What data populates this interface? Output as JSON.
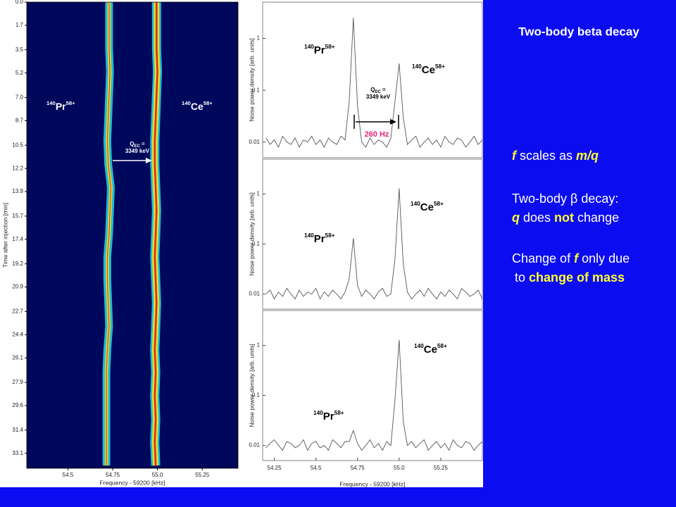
{
  "slide": {
    "title": "Two-body beta decay",
    "lines": [
      [
        {
          "text": "f",
          "style": "yi"
        },
        {
          "text": " scales as ",
          "style": "w"
        },
        {
          "text": "m/q",
          "style": "yi"
        }
      ],
      [
        {
          "text": "Two-body β decay:",
          "style": "w"
        }
      ],
      [
        {
          "text": "q",
          "style": "yi"
        },
        {
          "text": " does ",
          "style": "w"
        },
        {
          "text": "not",
          "style": "yb"
        },
        {
          "text": " change",
          "style": "w"
        }
      ],
      [
        {
          "text": "Change of ",
          "style": "w"
        },
        {
          "text": "f",
          "style": "yi"
        },
        {
          "text": " only due",
          "style": "w"
        }
      ],
      [
        {
          "text": "to ",
          "style": "w"
        },
        {
          "text": "change of mass",
          "style": "yb"
        }
      ]
    ]
  },
  "chart_data": [
    {
      "type": "trace",
      "ylabel": "Time after injection [min]",
      "xlabel": "Frequency - 59200 [kHz]",
      "xlim": [
        54.27,
        55.45
      ],
      "xticks": [
        54.5,
        54.75,
        {
          "value": 55,
          "label": "55.0"
        },
        55.25
      ],
      "ylim": [
        0,
        34.2
      ],
      "yticks": [
        {
          "value": 0,
          "label": "0.0"
        },
        1.7,
        3.5,
        5.2,
        {
          "value": 7,
          "label": "7.0"
        },
        8.7,
        10.5,
        12.2,
        13.9,
        15.7,
        17.4,
        19.2,
        20.9,
        22.7,
        24.4,
        26.1,
        27.9,
        29.6,
        31.4,
        33.1
      ],
      "y": [
        0,
        1.7,
        3.4,
        5.1,
        6.8,
        8.5,
        10.2,
        11.9,
        13.6,
        15.3,
        17,
        18.7,
        20.4,
        22.1,
        23.8,
        25.5,
        27.2,
        28.9,
        30.6,
        32.3,
        34
      ],
      "series": [
        {
          "values": [
            54.73,
            54.73,
            54.73,
            54.735,
            54.73,
            54.725,
            54.72,
            54.725,
            54.74,
            54.735,
            54.73,
            54.72,
            54.72,
            54.725,
            54.73,
            54.72,
            54.715,
            54.715,
            54.715,
            54.715,
            54.715
          ]
        },
        {
          "values": [
            54.995,
            54.995,
            54.995,
            55.0,
            54.995,
            54.99,
            54.985,
            54.985,
            54.99,
            54.995,
            54.99,
            54.985,
            54.99,
            54.995,
            54.99,
            54.985,
            54.99,
            54.985,
            54.99,
            54.985,
            54.99
          ]
        }
      ],
      "annotations": {
        "ions": [
          {
            "mass": "140",
            "element": "Pr",
            "charge": "58+"
          },
          {
            "mass": "140",
            "element": "Ce",
            "charge": "58+"
          }
        ],
        "q": {
          "symbol": "Q",
          "subscript": "EC",
          "suffix": " =",
          "value": "3349 keV"
        }
      }
    },
    {
      "type": "line",
      "ylabel": "Noise power density [arb. units]",
      "log_y": true,
      "xlim": [
        54.18,
        55.5
      ],
      "ylim": [
        0.005,
        5
      ],
      "yticks": [
        0.01,
        0.1,
        1
      ],
      "x": [
        54.2,
        54.225,
        54.25,
        54.275,
        54.3,
        54.325,
        54.35,
        54.375,
        54.4,
        54.425,
        54.45,
        54.475,
        54.5,
        54.525,
        54.55,
        54.575,
        54.6,
        54.625,
        54.65,
        54.675,
        54.7,
        54.725,
        54.75,
        54.775,
        54.8,
        54.825,
        54.85,
        54.875,
        54.9,
        54.925,
        54.95,
        54.975,
        55.0,
        55.025,
        55.05,
        55.075,
        55.1,
        55.125,
        55.15,
        55.175,
        55.2,
        55.225,
        55.25,
        55.275,
        55.3,
        55.325,
        55.35,
        55.375,
        55.4,
        55.425,
        55.45,
        55.475,
        55.5
      ],
      "color": "#555555",
      "values": [
        0.012,
        0.009,
        0.011,
        0.008,
        0.013,
        0.01,
        0.009,
        0.012,
        0.008,
        0.011,
        0.01,
        0.013,
        0.009,
        0.011,
        0.008,
        0.012,
        0.01,
        0.009,
        0.013,
        0.011,
        0.06,
        2.5,
        0.05,
        0.01,
        0.008,
        0.012,
        0.009,
        0.011,
        0.01,
        0.008,
        0.012,
        0.06,
        0.33,
        0.03,
        0.009,
        0.011,
        0.013,
        0.008,
        0.01,
        0.012,
        0.009,
        0.011,
        0.008,
        0.013,
        0.01,
        0.009,
        0.012,
        0.011,
        0.008,
        0.01,
        0.013,
        0.009,
        0.011
      ],
      "annotations": {
        "ions": [
          {
            "mass": "140",
            "element": "Pr",
            "charge": "58+"
          },
          {
            "mass": "140",
            "element": "Ce",
            "charge": "58+"
          }
        ],
        "q": {
          "symbol": "Q",
          "subscript": "EC",
          "suffix": " =",
          "value": "3349 keV"
        },
        "shift": "260 Hz"
      }
    },
    {
      "type": "line",
      "ylabel": "Noise power density [arb. units]",
      "log_y": true,
      "xlim": [
        54.18,
        55.5
      ],
      "ylim": [
        0.005,
        5
      ],
      "yticks": [
        0.01,
        0.1,
        1
      ],
      "x": [
        54.2,
        54.225,
        54.25,
        54.275,
        54.3,
        54.325,
        54.35,
        54.375,
        54.4,
        54.425,
        54.45,
        54.475,
        54.5,
        54.525,
        54.55,
        54.575,
        54.6,
        54.625,
        54.65,
        54.675,
        54.7,
        54.725,
        54.75,
        54.775,
        54.8,
        54.825,
        54.85,
        54.875,
        54.9,
        54.925,
        54.95,
        54.975,
        55.0,
        55.025,
        55.05,
        55.075,
        55.1,
        55.125,
        55.15,
        55.175,
        55.2,
        55.225,
        55.25,
        55.275,
        55.3,
        55.325,
        55.35,
        55.375,
        55.4,
        55.425,
        55.45,
        55.475,
        55.5
      ],
      "color": "#555555",
      "values": [
        0.01,
        0.012,
        0.008,
        0.011,
        0.009,
        0.013,
        0.01,
        0.008,
        0.012,
        0.009,
        0.011,
        0.01,
        0.013,
        0.008,
        0.011,
        0.009,
        0.012,
        0.01,
        0.008,
        0.011,
        0.02,
        0.13,
        0.015,
        0.009,
        0.012,
        0.01,
        0.008,
        0.011,
        0.013,
        0.009,
        0.01,
        0.05,
        1.3,
        0.04,
        0.011,
        0.008,
        0.01,
        0.012,
        0.009,
        0.013,
        0.01,
        0.008,
        0.011,
        0.009,
        0.012,
        0.01,
        0.008,
        0.013,
        0.011,
        0.009,
        0.01,
        0.012,
        0.008
      ],
      "annotations": {
        "ions": [
          {
            "mass": "140",
            "element": "Pr",
            "charge": "58+"
          },
          {
            "mass": "140",
            "element": "Ce",
            "charge": "58+"
          }
        ]
      }
    },
    {
      "type": "line",
      "ylabel": "Noise power density [arb. units]",
      "xlabel": "Frequency - 59200 [kHz]",
      "log_y": true,
      "xlim": [
        54.18,
        55.5
      ],
      "ylim": [
        0.005,
        5
      ],
      "yticks": [
        0.01,
        0.1,
        1
      ],
      "xticks": [
        54.25,
        54.5,
        54.75,
        {
          "value": 55,
          "label": "55.0"
        },
        55.25
      ],
      "x": [
        54.2,
        54.225,
        54.25,
        54.275,
        54.3,
        54.325,
        54.35,
        54.375,
        54.4,
        54.425,
        54.45,
        54.475,
        54.5,
        54.525,
        54.55,
        54.575,
        54.6,
        54.625,
        54.65,
        54.675,
        54.7,
        54.725,
        54.75,
        54.775,
        54.8,
        54.825,
        54.85,
        54.875,
        54.9,
        54.925,
        54.95,
        54.975,
        55.0,
        55.025,
        55.05,
        55.075,
        55.1,
        55.125,
        55.15,
        55.175,
        55.2,
        55.225,
        55.25,
        55.275,
        55.3,
        55.325,
        55.35,
        55.375,
        55.4,
        55.425,
        55.45,
        55.475,
        55.5
      ],
      "color": "#555555",
      "values": [
        0.009,
        0.011,
        0.013,
        0.01,
        0.008,
        0.012,
        0.011,
        0.009,
        0.01,
        0.013,
        0.008,
        0.011,
        0.012,
        0.009,
        0.01,
        0.008,
        0.013,
        0.011,
        0.009,
        0.012,
        0.012,
        0.02,
        0.011,
        0.008,
        0.01,
        0.013,
        0.009,
        0.011,
        0.008,
        0.012,
        0.01,
        0.08,
        1.3,
        0.03,
        0.01,
        0.012,
        0.009,
        0.011,
        0.013,
        0.008,
        0.01,
        0.012,
        0.009,
        0.011,
        0.008,
        0.013,
        0.01,
        0.009,
        0.012,
        0.011,
        0.008,
        0.01,
        0.012
      ],
      "annotations": {
        "ions": [
          {
            "mass": "140",
            "element": "Pr",
            "charge": "58+"
          },
          {
            "mass": "140",
            "element": "Ce",
            "charge": "58+"
          }
        ]
      }
    }
  ]
}
